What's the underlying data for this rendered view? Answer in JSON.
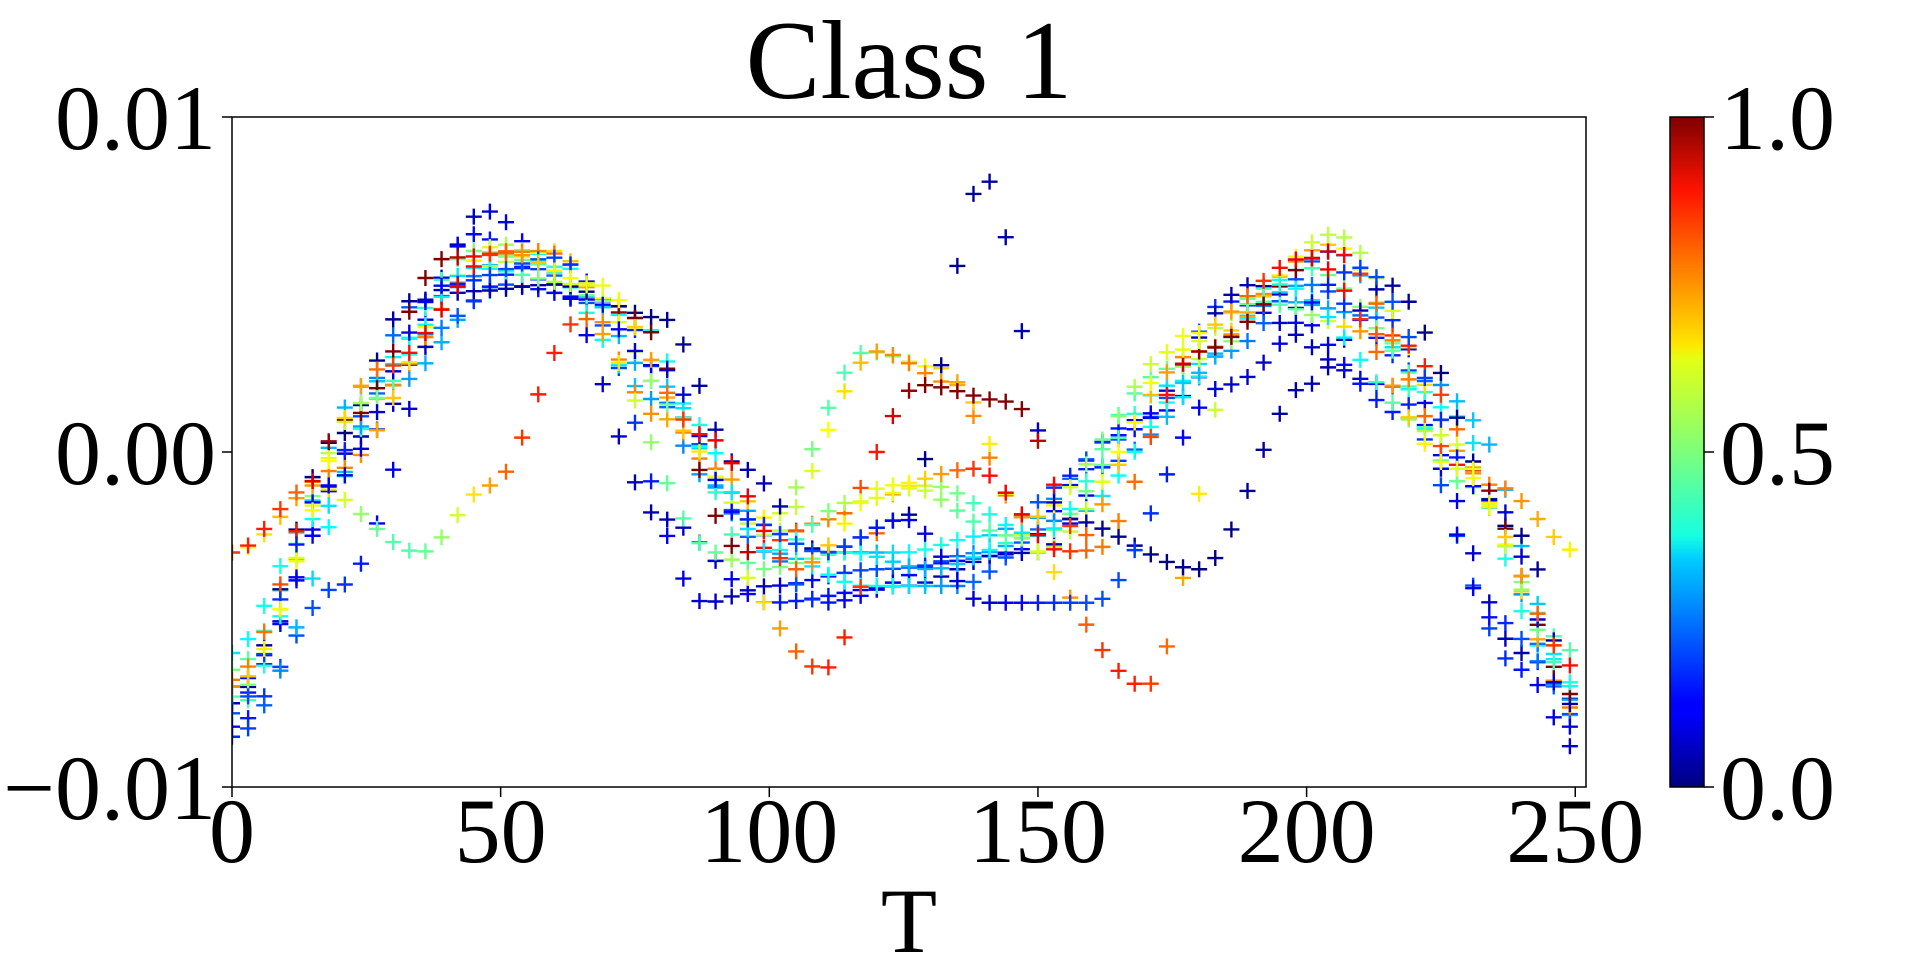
{
  "chart_data": {
    "type": "scatter",
    "title": "Class 1",
    "xlabel": "T",
    "ylabel": "",
    "xlim": [
      0,
      252
    ],
    "ylim": [
      -0.01,
      0.01
    ],
    "xticks": [
      0,
      50,
      100,
      150,
      200,
      250
    ],
    "xtick_labels": [
      "0",
      "50",
      "100",
      "150",
      "200",
      "250"
    ],
    "yticks": [
      -0.01,
      0.0,
      0.01
    ],
    "ytick_labels": [
      "−0.01",
      "0.00",
      "0.01"
    ],
    "marker": "+",
    "grid": false,
    "colormap": "jet",
    "colorbar": {
      "range": [
        0.0,
        1.0
      ],
      "ticks": [
        0.0,
        0.5,
        1.0
      ],
      "tick_labels": [
        "0.0",
        "0.5",
        "1.0"
      ],
      "placement": "right"
    },
    "series_sampling": {
      "x_start": 0,
      "x_end": 251,
      "step": 3
    },
    "series": [
      {
        "x_knots": [
          0,
          20,
          47,
          65,
          88,
          100,
          120,
          150,
          170,
          185,
          215,
          240,
          251
        ],
        "y_knots": [
          -0.0082,
          -0.004,
          0.0072,
          0.0045,
          -0.0045,
          -0.004,
          -0.0035,
          -0.003,
          0.001,
          0.0045,
          0.002,
          -0.0065,
          -0.009
        ],
        "importance": 0.05,
        "importance_var": 0.15
      },
      {
        "x_knots": [
          0,
          25,
          45,
          60,
          80,
          100,
          125,
          145,
          165,
          190,
          220,
          240,
          251
        ],
        "y_knots": [
          -0.0075,
          0.0005,
          0.0065,
          0.005,
          -0.002,
          -0.0045,
          -0.004,
          -0.003,
          0.0005,
          0.005,
          0.001,
          -0.006,
          -0.0075
        ],
        "importance": 0.05,
        "importance_var": 0.1
      },
      {
        "x_knots": [
          0,
          30,
          50,
          70,
          90,
          110,
          140,
          170,
          195,
          215,
          235,
          251
        ],
        "y_knots": [
          -0.007,
          0.002,
          0.005,
          0.0045,
          -0.001,
          -0.0045,
          -0.003,
          0.001,
          0.0045,
          0.004,
          -0.005,
          -0.0075
        ],
        "importance": 0.1,
        "importance_var": 0.2
      },
      {
        "x_knots": [
          0,
          35,
          55,
          75,
          95,
          110,
          125,
          140,
          160,
          200,
          225,
          245,
          251
        ],
        "y_knots": [
          -0.0085,
          0.0035,
          0.0055,
          0.004,
          -0.002,
          -0.003,
          -0.003,
          -0.0025,
          -0.0005,
          0.005,
          0.002,
          -0.006,
          -0.0085
        ],
        "importance": 0.15,
        "importance_var": 0.25
      },
      {
        "x_knots": [
          0,
          15,
          35,
          55,
          80,
          100,
          118,
          135,
          155,
          185,
          205,
          230,
          251
        ],
        "y_knots": [
          -0.006,
          -0.002,
          0.0045,
          0.006,
          0.0015,
          -0.003,
          -0.004,
          -0.004,
          -0.002,
          0.003,
          0.006,
          -0.001,
          -0.008
        ],
        "importance": 0.2,
        "importance_var": 0.2
      },
      {
        "x_knots": [
          0,
          25,
          45,
          62,
          80,
          98,
          115,
          130,
          150,
          175,
          200,
          230,
          251
        ],
        "y_knots": [
          -0.0078,
          0.002,
          0.006,
          0.0055,
          0.002,
          -0.0035,
          -0.003,
          -0.0035,
          -0.0025,
          0.002,
          0.0055,
          0.001,
          -0.0072
        ],
        "importance": 0.3,
        "importance_var": 0.2
      },
      {
        "x_knots": [
          0,
          25,
          50,
          70,
          90,
          100,
          118,
          132,
          148,
          175,
          205,
          230,
          251
        ],
        "y_knots": [
          -0.0065,
          0.0015,
          0.0062,
          0.0045,
          -0.0005,
          -0.002,
          0.003,
          0.0025,
          -0.002,
          0.0025,
          0.0062,
          -0.001,
          -0.0078
        ],
        "importance": 0.45,
        "importance_var": 0.3
      },
      {
        "x_knots": [
          0,
          20,
          45,
          60,
          80,
          100,
          120,
          135,
          150,
          180,
          205,
          235,
          251
        ],
        "y_knots": [
          -0.003,
          -0.0005,
          0.0055,
          0.006,
          0.001,
          -0.0025,
          0.003,
          0.002,
          -0.003,
          0.003,
          0.0065,
          -0.001,
          -0.003
        ],
        "importance": 0.55,
        "importance_var": 0.2
      },
      {
        "x_knots": [
          0,
          15,
          35,
          48,
          65,
          90,
          110,
          125,
          145,
          170,
          190,
          215,
          251
        ],
        "y_knots": [
          -0.003,
          -0.001,
          -0.003,
          -0.001,
          0.004,
          -0.003,
          -0.0065,
          -0.001,
          -0.0025,
          -0.007,
          0.0045,
          0.0035,
          -0.006
        ],
        "importance": 0.45,
        "importance_var": 0.4
      },
      {
        "x_knots": [
          0,
          20,
          33,
          45,
          60,
          80,
          95,
          110,
          125,
          140,
          155,
          180,
          200,
          215,
          240,
          251
        ],
        "y_knots": [
          -0.0075,
          0.0005,
          0.0045,
          0.0048,
          0.005,
          0.004,
          -0.0005,
          -0.003,
          -0.002,
          0.0082,
          -0.002,
          -0.0035,
          0.002,
          0.005,
          -0.0025,
          -0.008
        ],
        "importance": 0.0,
        "importance_var": 0.05
      },
      {
        "x_knots": [
          0,
          22,
          40,
          58,
          75,
          95,
          112,
          128,
          145,
          160,
          180,
          205,
          230,
          251
        ],
        "y_knots": [
          -0.0068,
          0.001,
          0.0058,
          0.006,
          0.004,
          -0.003,
          -0.002,
          0.002,
          0.0015,
          -0.003,
          0.003,
          0.006,
          -0.0005,
          -0.0074
        ],
        "importance": 0.75,
        "importance_var": 0.35
      },
      {
        "x_knots": [
          0,
          25,
          45,
          65,
          85,
          100,
          115,
          130,
          150,
          175,
          195,
          225,
          251
        ],
        "y_knots": [
          -0.0073,
          0.0015,
          0.0055,
          0.005,
          0.001,
          -0.003,
          -0.0015,
          -0.001,
          -0.0025,
          0.003,
          0.005,
          0.0005,
          -0.007
        ],
        "importance": 0.35,
        "importance_var": 0.25
      },
      {
        "x_knots": [
          0,
          18,
          40,
          60,
          80,
          95,
          110,
          125,
          140,
          160,
          185,
          210,
          235,
          251
        ],
        "y_knots": [
          -0.0078,
          -0.001,
          0.005,
          0.0058,
          0.0025,
          -0.002,
          -0.003,
          -0.002,
          -0.0045,
          -0.0045,
          0.002,
          0.0055,
          -0.0015,
          -0.0085
        ],
        "importance": 0.08,
        "importance_var": 0.12
      },
      {
        "x_knots": [
          0,
          28,
          50,
          68,
          88,
          105,
          122,
          138,
          155,
          178,
          200,
          228,
          251
        ],
        "y_knots": [
          -0.007,
          0.0025,
          0.006,
          0.005,
          0.0005,
          -0.0035,
          -0.001,
          -0.0005,
          -0.003,
          0.0035,
          0.0058,
          -0.0005,
          -0.0065
        ],
        "importance": 0.6,
        "importance_var": 0.3
      }
    ]
  }
}
